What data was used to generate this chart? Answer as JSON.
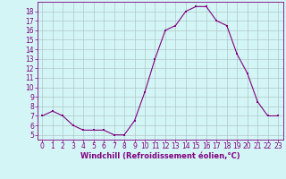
{
  "hours": [
    0,
    1,
    2,
    3,
    4,
    5,
    6,
    7,
    8,
    9,
    10,
    11,
    12,
    13,
    14,
    15,
    16,
    17,
    18,
    19,
    20,
    21,
    22,
    23
  ],
  "values": [
    7.0,
    7.5,
    7.0,
    6.0,
    5.5,
    5.5,
    5.5,
    5.0,
    5.0,
    6.5,
    9.5,
    13.0,
    16.0,
    16.5,
    18.0,
    18.5,
    18.5,
    17.0,
    16.5,
    13.5,
    11.5,
    8.5,
    7.0,
    7.0
  ],
  "line_color": "#800080",
  "marker": "s",
  "marker_size": 2.0,
  "bg_color": "#d4f5f5",
  "grid_color": "#b0c8c8",
  "xlabel": "Windchill (Refroidissement éolien,°C)",
  "xlabel_color": "#800080",
  "xlabel_fontsize": 6.0,
  "tick_color": "#800080",
  "tick_fontsize": 5.5,
  "ylim": [
    4.5,
    19.0
  ],
  "yticks": [
    5,
    6,
    7,
    8,
    9,
    10,
    11,
    12,
    13,
    14,
    15,
    16,
    17,
    18
  ],
  "xlim": [
    -0.5,
    23.5
  ],
  "xticks": [
    0,
    1,
    2,
    3,
    4,
    5,
    6,
    7,
    8,
    9,
    10,
    11,
    12,
    13,
    14,
    15,
    16,
    17,
    18,
    19,
    20,
    21,
    22,
    23
  ]
}
